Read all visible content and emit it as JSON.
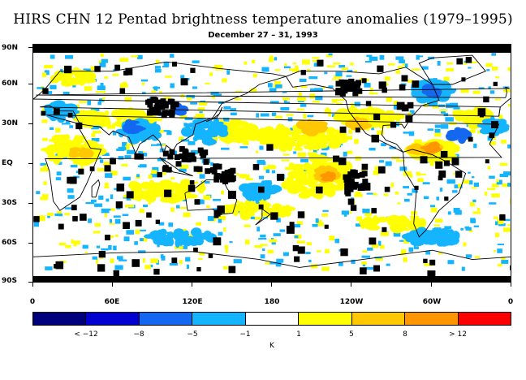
{
  "title": "HIRS CHN 12 Pentad brightness temperature anomalies (1979–1995)",
  "subtitle": "December 27 – 31, 1993",
  "lat_labels": [
    "90N",
    "60N",
    "30N",
    "EQ",
    "30S",
    "60S",
    "90S"
  ],
  "lon_labels": [
    "0",
    "60E",
    "120E",
    "180",
    "120W",
    "60W",
    "0"
  ],
  "colorbar": {
    "unit": "K",
    "labels": [
      "< −12",
      "−8",
      "−5",
      "−1",
      "1",
      "5",
      "8",
      "> 12"
    ],
    "colors": [
      "#00007f",
      "#0000d0",
      "#1468f0",
      "#14b4ff",
      "#ffffff",
      "#ffff00",
      "#ffc800",
      "#ff9600",
      "#ff0000"
    ]
  },
  "legend_colors": {
    "missing": "#000000",
    "land_outline": "#000000"
  }
}
